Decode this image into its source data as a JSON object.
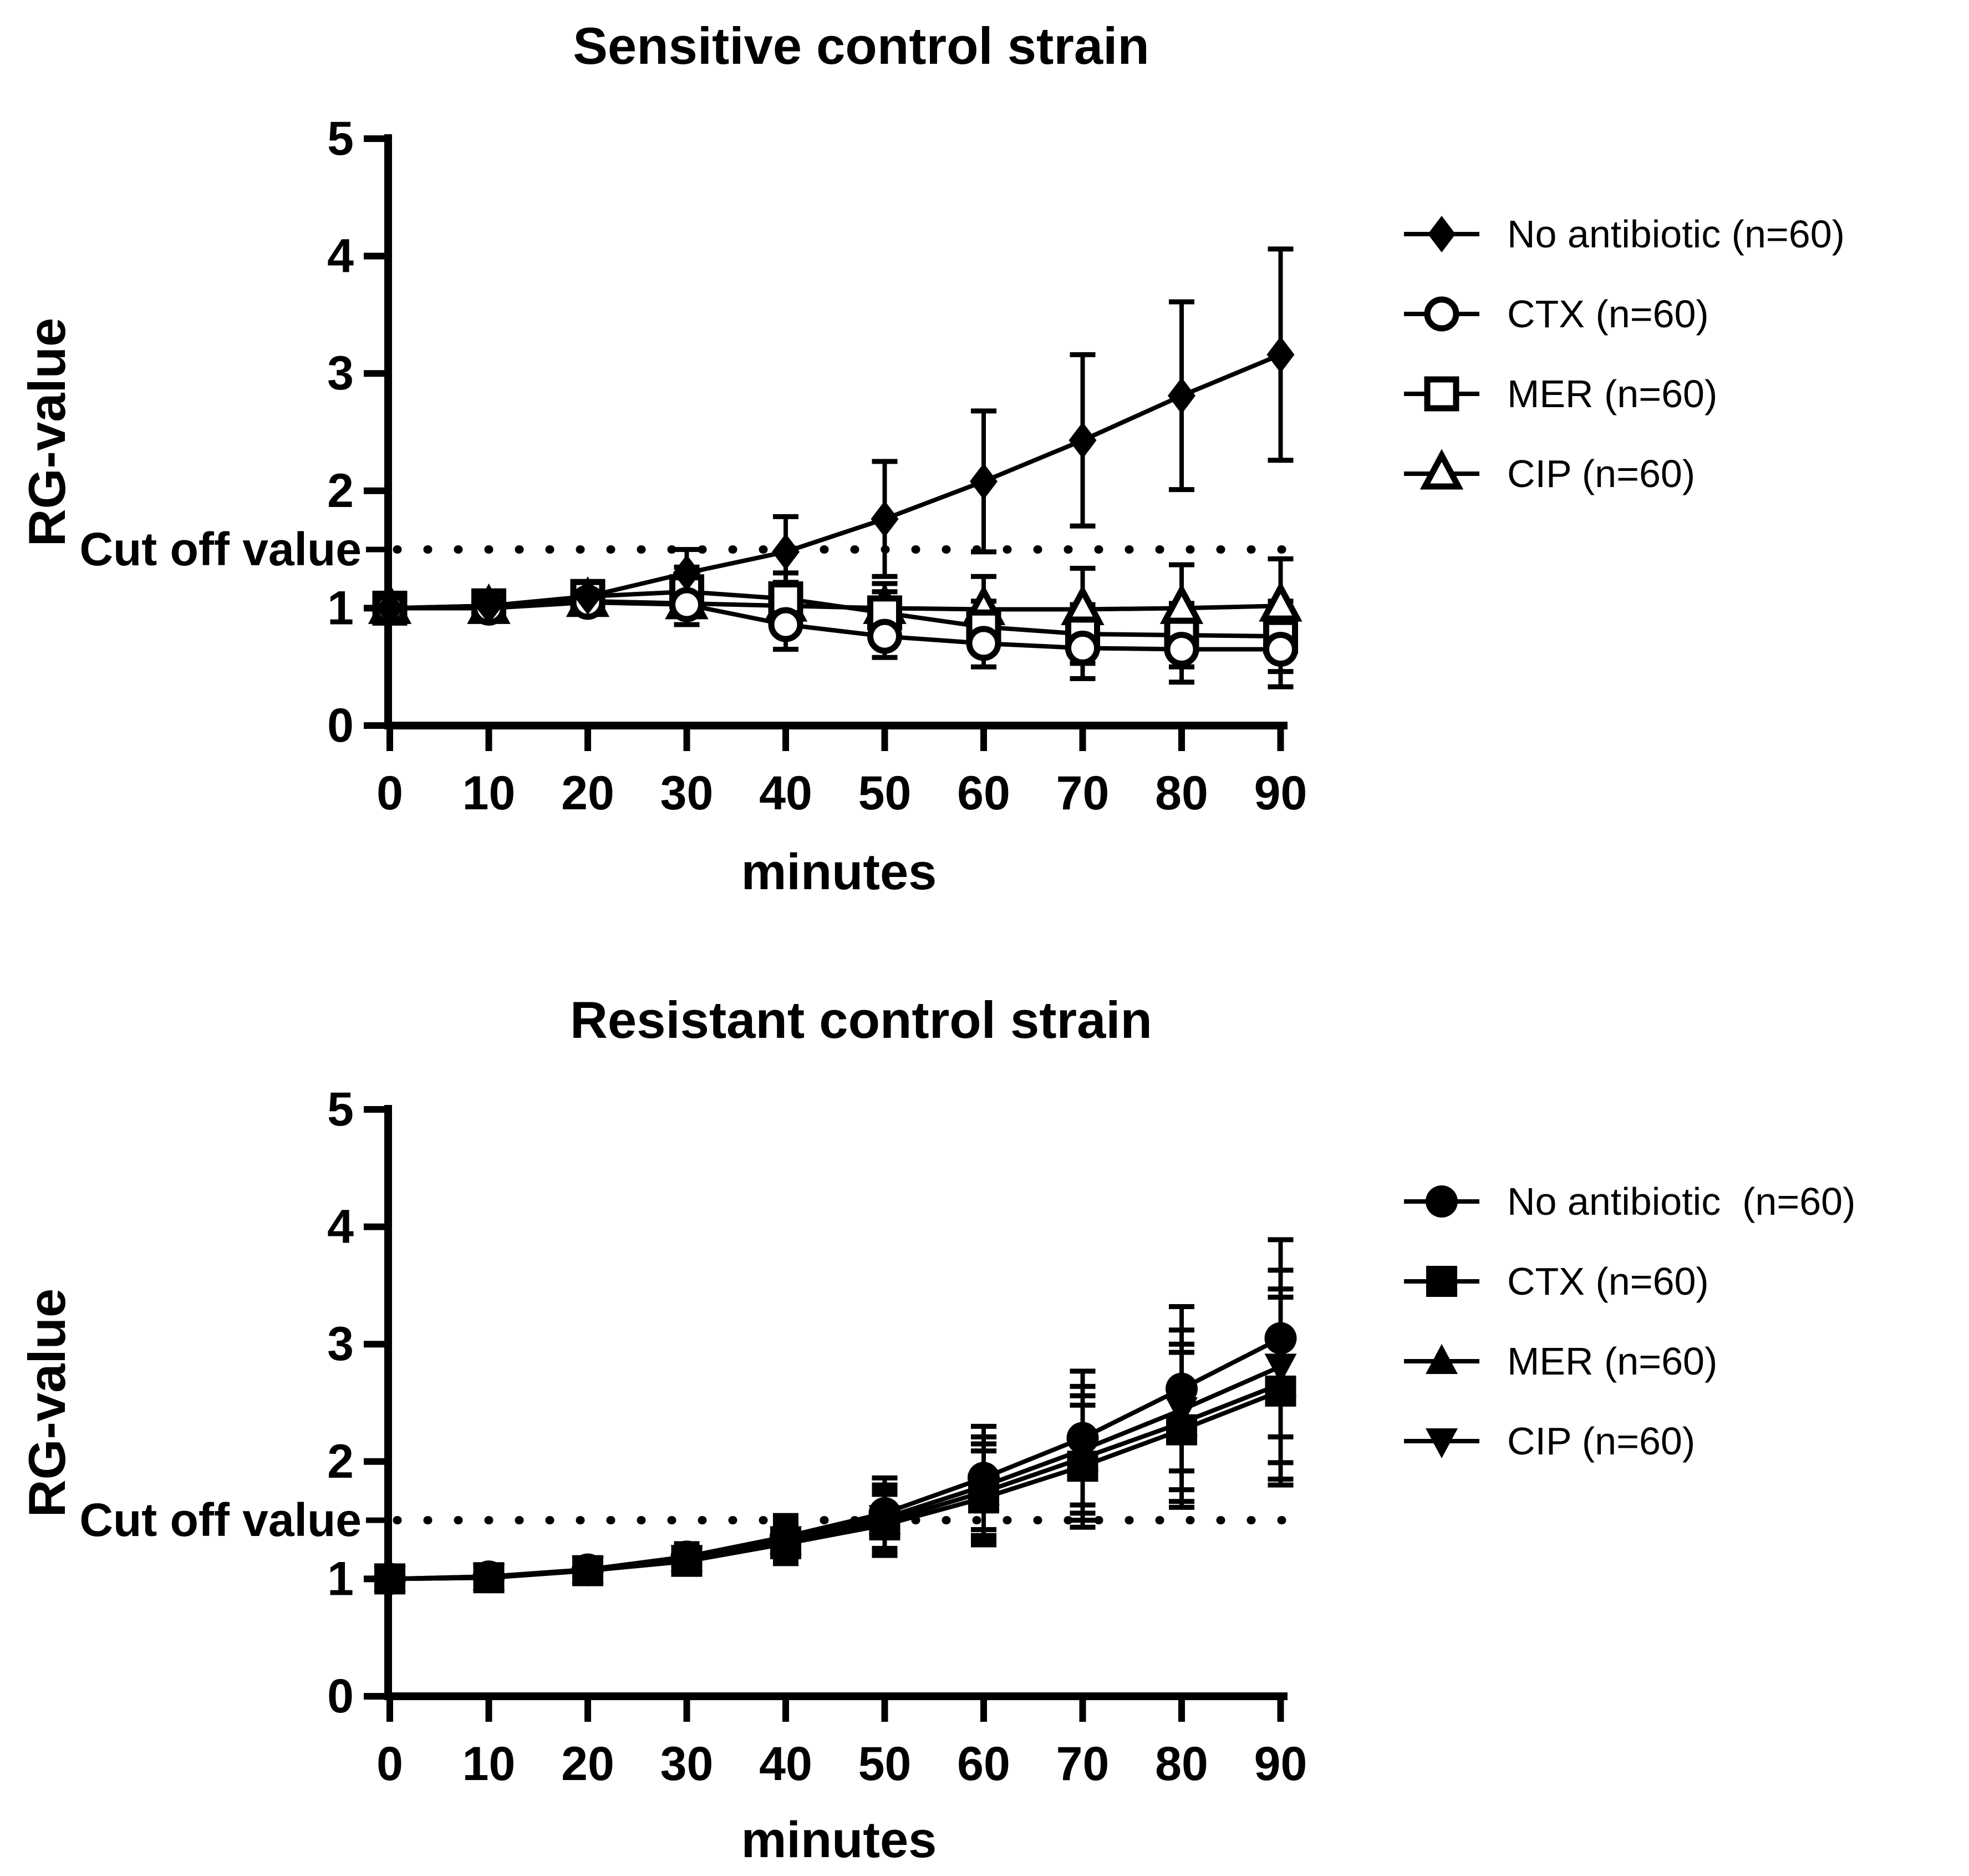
{
  "page": {
    "background_color": "#ffffff",
    "foreground_color": "#000000"
  },
  "chart_data": [
    {
      "type": "line",
      "title": "Sensitive control strain",
      "ylabel": "RG-value",
      "xlabel": "minutes",
      "cutoff_label": "Cut off value",
      "cutoff_value": 1.5,
      "ylim": [
        0,
        5
      ],
      "y_ticks": [
        0,
        1,
        2,
        3,
        4,
        5
      ],
      "x": [
        0,
        10,
        20,
        30,
        40,
        50,
        60,
        70,
        80,
        90
      ],
      "grid": false,
      "legend_position": "right",
      "series": [
        {
          "label": "No antibiotic (n=60)",
          "marker": "diamond-filled",
          "values": [
            1.0,
            1.02,
            1.1,
            1.3,
            1.48,
            1.76,
            2.08,
            2.43,
            2.81,
            3.16
          ],
          "errors": [
            0.05,
            0.06,
            0.11,
            0.2,
            0.3,
            0.49,
            0.6,
            0.73,
            0.8,
            0.9
          ]
        },
        {
          "label": "CTX (n=60)",
          "marker": "circle-open",
          "values": [
            1.0,
            1.0,
            1.05,
            1.03,
            0.86,
            0.76,
            0.7,
            0.66,
            0.65,
            0.65
          ],
          "errors": [
            0.05,
            0.06,
            0.09,
            0.17,
            0.21,
            0.18,
            0.2,
            0.26,
            0.28,
            0.32
          ]
        },
        {
          "label": "MER (n=60)",
          "marker": "square-open",
          "values": [
            1.0,
            1.02,
            1.1,
            1.14,
            1.08,
            0.96,
            0.84,
            0.78,
            0.77,
            0.76
          ],
          "errors": [
            0.05,
            0.07,
            0.1,
            0.21,
            0.22,
            0.18,
            0.22,
            0.25,
            0.27,
            0.3
          ]
        },
        {
          "label": "CIP (n=60)",
          "marker": "triangle-open",
          "values": [
            1.0,
            1.0,
            1.06,
            1.04,
            1.02,
            1.0,
            0.99,
            0.99,
            1.0,
            1.02
          ],
          "errors": [
            0.05,
            0.06,
            0.09,
            0.18,
            0.2,
            0.21,
            0.28,
            0.35,
            0.37,
            0.4
          ]
        }
      ]
    },
    {
      "type": "line",
      "title": "Resistant control strain",
      "ylabel": "RG-value",
      "xlabel": "minutes",
      "cutoff_label": "Cut off value",
      "cutoff_value": 1.5,
      "ylim": [
        0,
        5
      ],
      "y_ticks": [
        0,
        1,
        2,
        3,
        4,
        5
      ],
      "x": [
        0,
        10,
        20,
        30,
        40,
        50,
        60,
        70,
        80,
        90
      ],
      "grid": false,
      "legend_position": "right",
      "series": [
        {
          "label": "No antibiotic  (n=60)",
          "marker": "circle-filled",
          "values": [
            1.0,
            1.02,
            1.08,
            1.19,
            1.36,
            1.56,
            1.86,
            2.2,
            2.62,
            3.05
          ],
          "errors": [
            0.03,
            0.04,
            0.06,
            0.11,
            0.18,
            0.3,
            0.44,
            0.57,
            0.7,
            0.84
          ]
        },
        {
          "label": "CTX (n=60)",
          "marker": "square-filled",
          "values": [
            1.0,
            1.01,
            1.07,
            1.15,
            1.3,
            1.46,
            1.69,
            1.96,
            2.27,
            2.6
          ],
          "errors": [
            0.03,
            0.04,
            0.06,
            0.11,
            0.17,
            0.26,
            0.4,
            0.52,
            0.66,
            0.8
          ]
        },
        {
          "label": "MER (n=60)",
          "marker": "triangle-filled",
          "values": [
            1.0,
            1.01,
            1.07,
            1.17,
            1.32,
            1.49,
            1.74,
            2.03,
            2.33,
            2.66
          ],
          "errors": [
            0.03,
            0.04,
            0.06,
            0.11,
            0.17,
            0.27,
            0.41,
            0.53,
            0.67,
            0.81
          ]
        },
        {
          "label": "CIP (n=60)",
          "marker": "triangle-down-filled",
          "values": [
            1.0,
            1.02,
            1.08,
            1.18,
            1.34,
            1.52,
            1.79,
            2.1,
            2.44,
            2.81
          ],
          "errors": [
            0.03,
            0.04,
            0.06,
            0.11,
            0.17,
            0.28,
            0.42,
            0.54,
            0.68,
            0.82
          ]
        }
      ]
    }
  ]
}
